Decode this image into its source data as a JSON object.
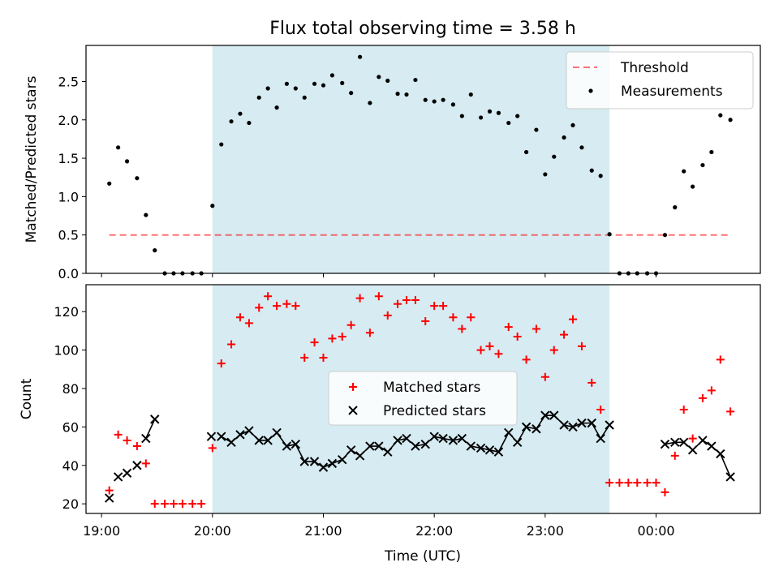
{
  "figure": {
    "title": "Flux total observing time = 3.58 h",
    "xlabel": "Time (UTC)"
  },
  "chart_data": [
    {
      "type": "scatter",
      "ylabel": "Matched/Predicted stars",
      "ylim": [
        0,
        2.97
      ],
      "yticks": [
        "0.0",
        "0.5",
        "1.0",
        "1.5",
        "2.0",
        "2.5"
      ],
      "xlim": [
        18.86,
        24.94
      ],
      "shaded_span": [
        20.0,
        23.58
      ],
      "shade_color": "#add8e6",
      "legend_position": "top-right",
      "threshold": {
        "name": "Threshold",
        "value": 0.5,
        "x_range": [
          19.07,
          24.68
        ],
        "color": "#ff0000"
      },
      "series": [
        {
          "name": "Measurements",
          "color": "#000000",
          "marker": "dot",
          "x": [
            19.07,
            19.15,
            19.23,
            19.32,
            19.4,
            19.48,
            19.57,
            19.65,
            19.73,
            19.82,
            19.9,
            20.0,
            20.08,
            20.17,
            20.25,
            20.33,
            20.42,
            20.5,
            20.58,
            20.67,
            20.75,
            20.83,
            20.92,
            21.0,
            21.08,
            21.17,
            21.25,
            21.33,
            21.42,
            21.5,
            21.58,
            21.67,
            21.75,
            21.83,
            21.92,
            22.0,
            22.08,
            22.17,
            22.25,
            22.33,
            22.42,
            22.5,
            22.58,
            22.67,
            22.75,
            22.83,
            22.92,
            23.0,
            23.08,
            23.17,
            23.25,
            23.33,
            23.42,
            23.5,
            23.58,
            23.67,
            23.75,
            23.83,
            23.92,
            24.0,
            24.08,
            24.17,
            24.25,
            24.33,
            24.42,
            24.5,
            24.58,
            24.67
          ],
          "values": [
            1.17,
            1.64,
            1.46,
            1.24,
            0.76,
            0.3,
            0,
            0,
            0,
            0,
            0,
            0.88,
            1.68,
            1.98,
            2.08,
            1.96,
            2.29,
            2.41,
            2.16,
            2.47,
            2.41,
            2.29,
            2.47,
            2.45,
            2.58,
            2.48,
            2.35,
            2.82,
            2.22,
            2.56,
            2.51,
            2.34,
            2.33,
            2.52,
            2.26,
            2.24,
            2.26,
            2.2,
            2.05,
            2.33,
            2.03,
            2.11,
            2.09,
            1.96,
            2.05,
            1.58,
            1.87,
            1.29,
            1.52,
            1.77,
            1.93,
            1.64,
            1.34,
            1.27,
            0.51,
            0,
            0,
            0,
            0,
            0,
            0.5,
            0.86,
            1.33,
            1.13,
            1.41,
            1.58,
            2.06,
            2.0
          ]
        }
      ]
    },
    {
      "type": "scatter",
      "ylabel": "Count",
      "ylim": [
        15,
        134
      ],
      "yticks": [
        "20",
        "40",
        "60",
        "80",
        "100",
        "120"
      ],
      "xlim": [
        18.86,
        24.94
      ],
      "xticks": [
        "19:00",
        "20:00",
        "21:00",
        "22:00",
        "23:00",
        "00:00"
      ],
      "shaded_span": [
        20.0,
        23.58
      ],
      "shade_color": "#add8e6",
      "legend_position": "center",
      "series": [
        {
          "name": "Matched stars",
          "color": "#ff0000",
          "marker": "plus",
          "x": [
            19.07,
            19.15,
            19.23,
            19.32,
            19.4,
            19.48,
            19.57,
            19.65,
            19.73,
            19.82,
            19.9,
            20.0,
            20.08,
            20.17,
            20.25,
            20.33,
            20.42,
            20.5,
            20.58,
            20.67,
            20.75,
            20.83,
            20.92,
            21.0,
            21.08,
            21.17,
            21.25,
            21.33,
            21.42,
            21.5,
            21.58,
            21.67,
            21.75,
            21.83,
            21.92,
            22.0,
            22.08,
            22.17,
            22.25,
            22.33,
            22.42,
            22.5,
            22.58,
            22.67,
            22.75,
            22.83,
            22.92,
            23.0,
            23.08,
            23.17,
            23.25,
            23.33,
            23.42,
            23.5,
            23.58,
            23.67,
            23.75,
            23.83,
            23.92,
            24.0,
            24.08,
            24.17,
            24.25,
            24.33,
            24.42,
            24.5,
            24.58,
            24.67
          ],
          "values": [
            27,
            56,
            53,
            50,
            41,
            20,
            20,
            20,
            20,
            20,
            20,
            49,
            93,
            103,
            117,
            114,
            122,
            128,
            123,
            124,
            123,
            96,
            104,
            96,
            106,
            107,
            113,
            127,
            109,
            128,
            118,
            124,
            126,
            126,
            115,
            123,
            123,
            117,
            111,
            117,
            100,
            102,
            98,
            112,
            107,
            95,
            111,
            86,
            100,
            108,
            116,
            102,
            83,
            69,
            31,
            31,
            31,
            31,
            31,
            31,
            26,
            45,
            69,
            54,
            75,
            79,
            95,
            68
          ]
        },
        {
          "name": "Predicted stars",
          "color": "#000000",
          "marker": "x",
          "connect_gaps": [
            [
              19.4,
              19.48
            ],
            [
              20.0,
              23.58
            ],
            [
              24.08,
              24.67
            ]
          ],
          "x": [
            19.07,
            19.15,
            19.23,
            19.32,
            19.4,
            19.48,
            19.99,
            20.08,
            20.17,
            20.25,
            20.33,
            20.42,
            20.5,
            20.58,
            20.67,
            20.75,
            20.83,
            20.92,
            21.0,
            21.08,
            21.17,
            21.25,
            21.33,
            21.42,
            21.5,
            21.58,
            21.67,
            21.75,
            21.83,
            21.92,
            22.0,
            22.08,
            22.17,
            22.25,
            22.33,
            22.42,
            22.5,
            22.58,
            22.67,
            22.75,
            22.83,
            22.92,
            23.0,
            23.08,
            23.17,
            23.25,
            23.33,
            23.42,
            23.5,
            23.58,
            24.08,
            24.17,
            24.25,
            24.33,
            24.42,
            24.5,
            24.58,
            24.67
          ],
          "values": [
            23,
            34,
            36,
            40,
            54,
            64,
            55,
            55,
            52,
            56,
            58,
            53,
            53,
            57,
            50,
            51,
            42,
            42,
            39,
            41,
            43,
            48,
            45,
            50,
            50,
            47,
            53,
            54,
            50,
            51,
            55,
            54,
            53,
            54,
            50,
            49,
            48,
            47,
            57,
            52,
            60,
            59,
            66,
            66,
            61,
            60,
            62,
            62,
            54,
            61,
            51,
            52,
            52,
            48,
            53,
            50,
            46,
            34
          ]
        }
      ]
    }
  ]
}
